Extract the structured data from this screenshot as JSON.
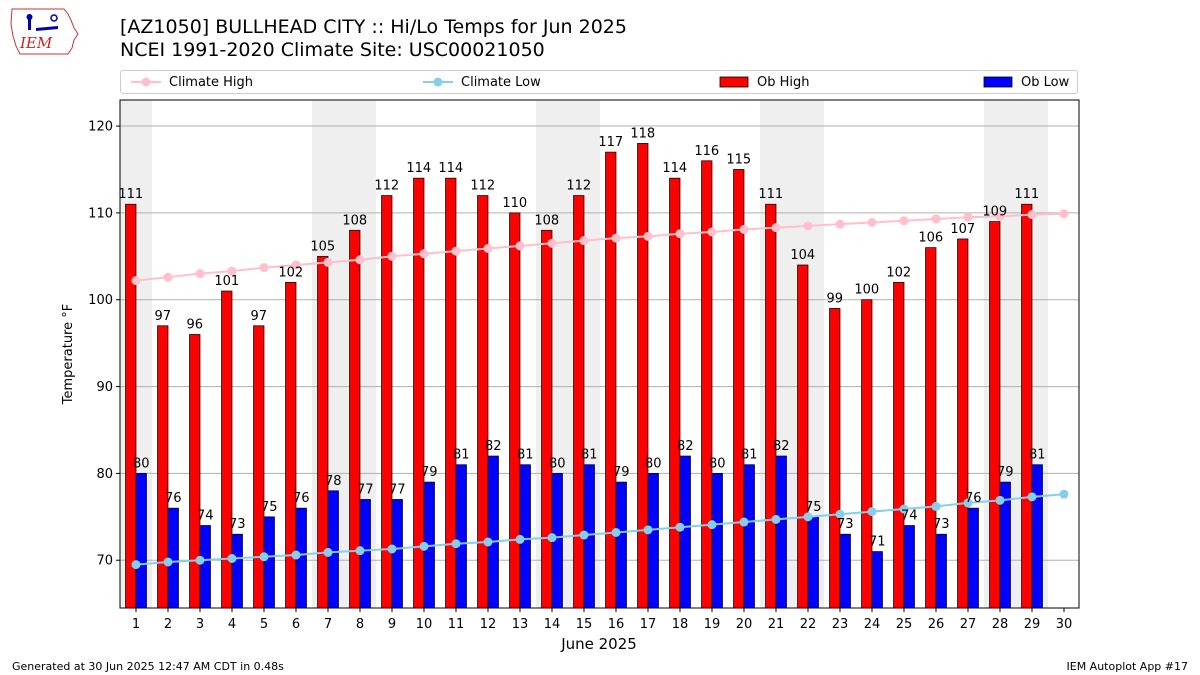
{
  "header": {
    "logo_text": "IEM",
    "title_line1": "[AZ1050] BULLHEAD CITY :: Hi/Lo Temps for Jun 2025",
    "title_line2": "NCEI 1991-2020 Climate Site: USC00021050"
  },
  "legend": {
    "items": [
      {
        "label": "Climate High",
        "kind": "line",
        "color": "#ffc0cb"
      },
      {
        "label": "Climate Low",
        "kind": "line",
        "color": "#87ceeb"
      },
      {
        "label": "Ob High",
        "kind": "bar",
        "color": "#ff0000"
      },
      {
        "label": "Ob Low",
        "kind": "bar",
        "color": "#0000ff"
      }
    ]
  },
  "chart_data": {
    "type": "bar",
    "xlabel": "June 2025",
    "ylabel": "Temperature °F",
    "ylim": [
      64.5,
      123
    ],
    "yticks": [
      70,
      80,
      90,
      100,
      110,
      120
    ],
    "days": [
      1,
      2,
      3,
      4,
      5,
      6,
      7,
      8,
      9,
      10,
      11,
      12,
      13,
      14,
      15,
      16,
      17,
      18,
      19,
      20,
      21,
      22,
      23,
      24,
      25,
      26,
      27,
      28,
      29,
      30
    ],
    "weekend_shaded_days": [
      1,
      7,
      8,
      14,
      15,
      21,
      22,
      28,
      29
    ],
    "grid": "horizontal",
    "series": [
      {
        "name": "Ob High",
        "kind": "bar",
        "color": "#ff0000",
        "values": [
          111,
          97,
          96,
          101,
          97,
          102,
          105,
          108,
          112,
          114,
          114,
          112,
          110,
          108,
          112,
          117,
          118,
          114,
          116,
          115,
          111,
          104,
          99,
          100,
          102,
          106,
          107,
          109,
          111,
          null
        ]
      },
      {
        "name": "Ob Low",
        "kind": "bar",
        "color": "#0000ff",
        "values": [
          80,
          76,
          74,
          73,
          75,
          76,
          78,
          77,
          77,
          79,
          81,
          82,
          81,
          80,
          81,
          79,
          80,
          82,
          80,
          81,
          82,
          75,
          73,
          71,
          74,
          73,
          76,
          79,
          81,
          null
        ]
      },
      {
        "name": "Climate High",
        "kind": "line",
        "color": "#ffc0cb",
        "values": [
          102.2,
          102.6,
          103.0,
          103.3,
          103.7,
          104.0,
          104.3,
          104.6,
          105.0,
          105.3,
          105.6,
          105.9,
          106.2,
          106.5,
          106.8,
          107.1,
          107.3,
          107.6,
          107.8,
          108.1,
          108.3,
          108.5,
          108.7,
          108.9,
          109.1,
          109.3,
          109.5,
          109.6,
          109.8,
          109.9
        ]
      },
      {
        "name": "Climate Low",
        "kind": "line",
        "color": "#87ceeb",
        "values": [
          69.5,
          69.8,
          70.0,
          70.2,
          70.4,
          70.6,
          70.9,
          71.1,
          71.3,
          71.6,
          71.9,
          72.1,
          72.4,
          72.6,
          72.9,
          73.2,
          73.5,
          73.8,
          74.1,
          74.4,
          74.7,
          75.0,
          75.3,
          75.6,
          75.9,
          76.2,
          76.6,
          76.9,
          77.3,
          77.6
        ]
      }
    ]
  },
  "footer": {
    "generated": "Generated at 30 Jun 2025 12:47 AM CDT in 0.48s",
    "app": "IEM Autoplot App #17"
  }
}
